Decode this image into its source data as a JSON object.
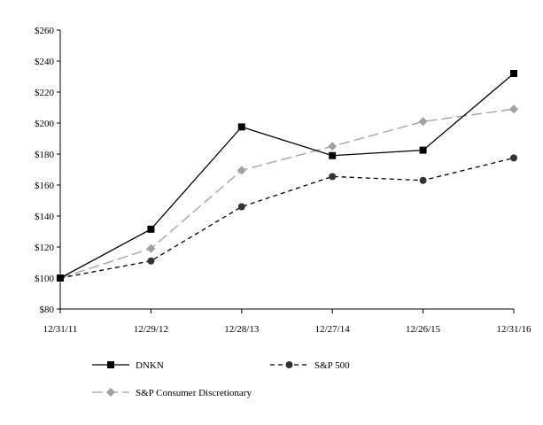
{
  "chart_data": {
    "type": "line",
    "title": "",
    "xlabel": "",
    "ylabel": "",
    "categories": [
      "12/31/11",
      "12/29/12",
      "12/28/13",
      "12/27/14",
      "12/26/15",
      "12/31/16"
    ],
    "ylim": [
      80,
      260
    ],
    "yticks": [
      80,
      100,
      120,
      140,
      160,
      180,
      200,
      220,
      240,
      260
    ],
    "ytick_labels": [
      "$80",
      "$100",
      "$120",
      "$140",
      "$160",
      "$180",
      "$200",
      "$220",
      "$240",
      "$260"
    ],
    "grid": false,
    "legend_position": "bottom",
    "series": [
      {
        "name": "DNKN",
        "values": [
          100,
          131.5,
          197.5,
          179,
          182.5,
          232
        ],
        "color": "#000000",
        "line_style": "solid",
        "marker": "square"
      },
      {
        "name": "S&P 500",
        "values": [
          100,
          111,
          146,
          165.5,
          163,
          177.5
        ],
        "color": "#000000",
        "marker_color": "#333333",
        "line_style": "dashed",
        "marker": "circle"
      },
      {
        "name": "S&P Consumer Discretionary",
        "values": [
          100,
          119,
          169.5,
          185,
          201,
          209
        ],
        "color": "#a0a0a0",
        "line_style": "long-dashed",
        "marker": "diamond"
      }
    ]
  }
}
